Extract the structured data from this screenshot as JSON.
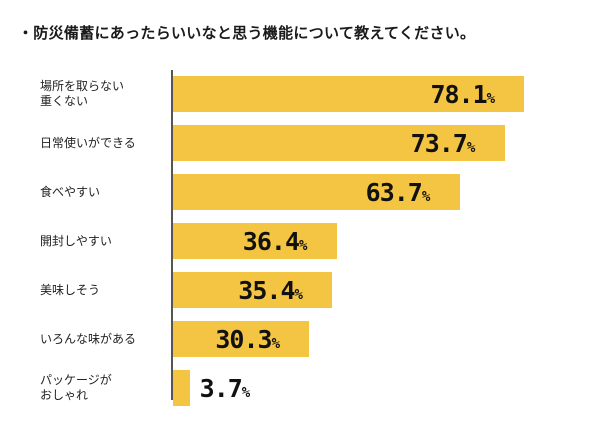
{
  "title": "・防災備蓄にあったらいいなと思う機能について教えてください。",
  "colors": {
    "bar": "#F4C542",
    "text": "#111111"
  },
  "chart_data": {
    "type": "bar",
    "orientation": "horizontal",
    "unit": "%",
    "xlim": [
      0,
      100
    ],
    "categories": [
      [
        "場所を取らない",
        "重くない"
      ],
      [
        "日常使いができる"
      ],
      [
        "食べやすい"
      ],
      [
        "開封しやすい"
      ],
      [
        "美味しそう"
      ],
      [
        "いろんな味がある"
      ],
      [
        "パッケージが",
        "おしゃれ"
      ]
    ],
    "values": [
      78.1,
      73.7,
      63.7,
      36.4,
      35.4,
      30.3,
      3.7
    ]
  }
}
